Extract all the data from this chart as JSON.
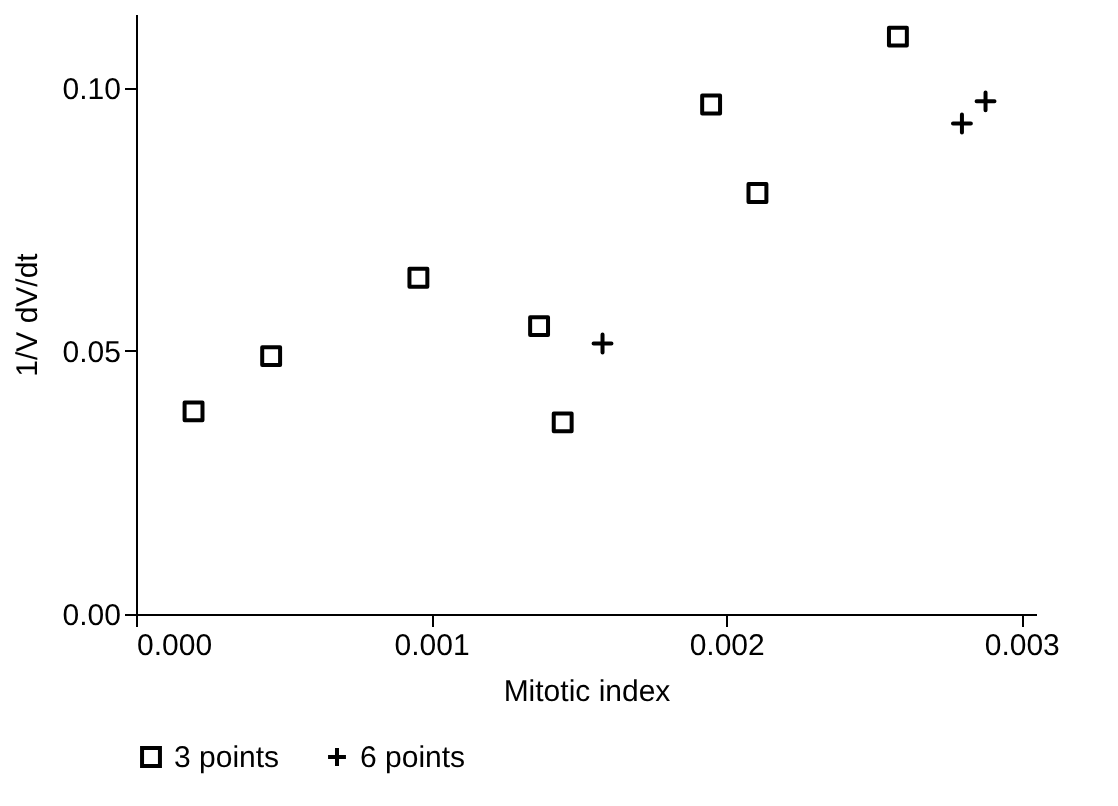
{
  "chart_data": {
    "type": "scatter",
    "xlabel": "Mitotic index",
    "ylabel": "1/V dV/dt",
    "xlim": [
      0,
      0.00305
    ],
    "ylim": [
      0,
      0.114
    ],
    "xticks": [
      {
        "value": 0,
        "label": "0.000"
      },
      {
        "value": 0.001,
        "label": "0.001"
      },
      {
        "value": 0.002,
        "label": "0.002"
      },
      {
        "value": 0.003,
        "label": "0.003"
      }
    ],
    "yticks": [
      {
        "value": 0,
        "label": "0.00"
      },
      {
        "value": 0.05,
        "label": "0.05"
      },
      {
        "value": 0.1,
        "label": "0.10"
      }
    ],
    "grid": false,
    "legend": "bottom",
    "series": [
      {
        "name": "3 points",
        "color": "#000000",
        "marker": "square",
        "x": [
          0.000195,
          0.000458,
          0.000957,
          0.001366,
          0.001446,
          0.001949,
          0.002106,
          0.002582
        ],
        "values": [
          0.0385,
          0.049,
          0.0639,
          0.0547,
          0.0364,
          0.0968,
          0.08,
          0.1097
        ]
      },
      {
        "name": "6 points",
        "color": "#000000",
        "marker": "cross",
        "x": [
          0.001581,
          0.002799,
          0.002879
        ],
        "values": [
          0.0514,
          0.0932,
          0.0974
        ]
      }
    ]
  }
}
